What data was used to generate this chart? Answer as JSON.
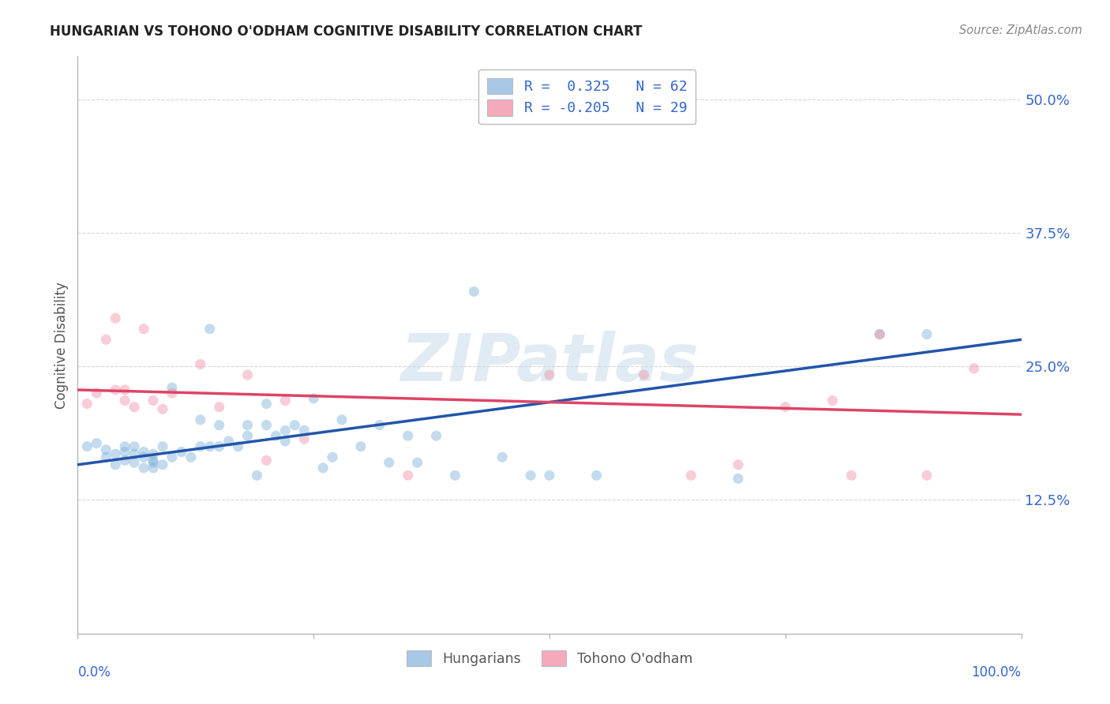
{
  "title": "HUNGARIAN VS TOHONO O'ODHAM COGNITIVE DISABILITY CORRELATION CHART",
  "source": "Source: ZipAtlas.com",
  "ylabel": "Cognitive Disability",
  "yticks": [
    0.125,
    0.25,
    0.375,
    0.5
  ],
  "ytick_labels": [
    "12.5%",
    "25.0%",
    "37.5%",
    "50.0%"
  ],
  "xlim": [
    0.0,
    1.0
  ],
  "ylim": [
    0.0,
    0.54
  ],
  "legend_blue_label": "R =  0.325   N = 62",
  "legend_pink_label": "R = -0.205   N = 29",
  "legend_blue_color": "#a8c8e8",
  "legend_pink_color": "#f4aabb",
  "scatter_blue_color": "#7ab0d8",
  "scatter_pink_color": "#f090a8",
  "line_blue_color": "#2255aa",
  "line_pink_color": "#dd4466",
  "background_color": "#ffffff",
  "grid_color": "#cccccc",
  "hungarian_x": [
    0.01,
    0.02,
    0.03,
    0.03,
    0.04,
    0.04,
    0.05,
    0.05,
    0.05,
    0.06,
    0.06,
    0.06,
    0.07,
    0.07,
    0.07,
    0.08,
    0.08,
    0.08,
    0.08,
    0.09,
    0.09,
    0.1,
    0.1,
    0.11,
    0.12,
    0.13,
    0.13,
    0.14,
    0.14,
    0.15,
    0.15,
    0.16,
    0.17,
    0.18,
    0.18,
    0.19,
    0.2,
    0.2,
    0.21,
    0.22,
    0.22,
    0.23,
    0.24,
    0.25,
    0.26,
    0.27,
    0.28,
    0.3,
    0.32,
    0.33,
    0.35,
    0.36,
    0.38,
    0.4,
    0.42,
    0.45,
    0.48,
    0.5,
    0.55,
    0.7,
    0.85,
    0.9
  ],
  "hungarian_y": [
    0.175,
    0.178,
    0.172,
    0.165,
    0.168,
    0.158,
    0.17,
    0.175,
    0.162,
    0.16,
    0.175,
    0.168,
    0.165,
    0.17,
    0.155,
    0.168,
    0.162,
    0.155,
    0.16,
    0.175,
    0.158,
    0.23,
    0.165,
    0.17,
    0.165,
    0.2,
    0.175,
    0.285,
    0.175,
    0.175,
    0.195,
    0.18,
    0.175,
    0.195,
    0.185,
    0.148,
    0.215,
    0.195,
    0.185,
    0.19,
    0.18,
    0.195,
    0.19,
    0.22,
    0.155,
    0.165,
    0.2,
    0.175,
    0.195,
    0.16,
    0.185,
    0.16,
    0.185,
    0.148,
    0.32,
    0.165,
    0.148,
    0.148,
    0.148,
    0.145,
    0.28,
    0.28
  ],
  "tohono_x": [
    0.01,
    0.02,
    0.03,
    0.04,
    0.04,
    0.05,
    0.05,
    0.06,
    0.07,
    0.08,
    0.09,
    0.1,
    0.13,
    0.15,
    0.18,
    0.2,
    0.22,
    0.24,
    0.35,
    0.5,
    0.6,
    0.65,
    0.7,
    0.75,
    0.8,
    0.82,
    0.85,
    0.9,
    0.95
  ],
  "tohono_y": [
    0.215,
    0.225,
    0.275,
    0.295,
    0.228,
    0.228,
    0.218,
    0.212,
    0.285,
    0.218,
    0.21,
    0.225,
    0.252,
    0.212,
    0.242,
    0.162,
    0.218,
    0.182,
    0.148,
    0.242,
    0.242,
    0.148,
    0.158,
    0.212,
    0.218,
    0.148,
    0.28,
    0.148,
    0.248
  ],
  "blue_line_y_start": 0.158,
  "blue_line_y_end": 0.275,
  "pink_line_y_start": 0.228,
  "pink_line_y_end": 0.205,
  "watermark": "ZIPatlas",
  "bottom_label_left": "Hungarians",
  "bottom_label_right": "Tohono O'odham",
  "marker_size": 90,
  "marker_alpha": 0.45,
  "line_width": 2.5
}
